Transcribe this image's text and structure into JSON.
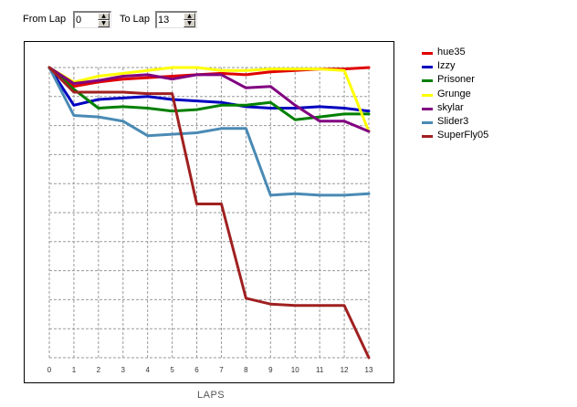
{
  "controls": {
    "from_label": "From Lap",
    "from_value": "0",
    "to_label": "To Lap",
    "to_value": "13"
  },
  "chart_data": {
    "type": "line",
    "xlabel": "LAPS",
    "ylabel": "",
    "title": "",
    "categories": [
      "0",
      "1",
      "2",
      "3",
      "4",
      "5",
      "6",
      "7",
      "8",
      "9",
      "10",
      "11",
      "12",
      "13"
    ],
    "x": [
      0,
      1,
      2,
      3,
      4,
      5,
      6,
      7,
      8,
      9,
      10,
      11,
      12,
      13
    ],
    "ylim": [
      0,
      10
    ],
    "y_tick_count": 10,
    "grid": true,
    "legend_position": "right",
    "series": [
      {
        "name": "hue35",
        "color": "#e00000",
        "values": [
          10.0,
          9.35,
          9.5,
          9.6,
          9.65,
          9.7,
          9.75,
          9.8,
          9.75,
          9.85,
          9.9,
          9.95,
          9.95,
          10.0
        ]
      },
      {
        "name": "Izzy",
        "color": "#0000c0",
        "values": [
          10.0,
          8.7,
          8.9,
          8.95,
          9.0,
          8.9,
          8.85,
          8.8,
          8.65,
          8.6,
          8.6,
          8.65,
          8.6,
          8.5
        ]
      },
      {
        "name": "Prisoner",
        "color": "#008000",
        "values": [
          10.0,
          9.25,
          8.6,
          8.65,
          8.6,
          8.5,
          8.55,
          8.7,
          8.7,
          8.8,
          8.2,
          8.3,
          8.4,
          8.4
        ]
      },
      {
        "name": "Grunge",
        "color": "#ffff00",
        "values": [
          10.0,
          9.5,
          9.7,
          9.8,
          9.9,
          10.0,
          10.0,
          9.9,
          9.9,
          9.95,
          9.95,
          9.95,
          9.9,
          7.8
        ]
      },
      {
        "name": "skylar",
        "color": "#800080",
        "values": [
          10.0,
          9.45,
          9.55,
          9.7,
          9.75,
          9.6,
          9.75,
          9.75,
          9.3,
          9.35,
          8.7,
          8.15,
          8.15,
          7.8
        ]
      },
      {
        "name": "Slider3",
        "color": "#4a8ab4",
        "values": [
          10.0,
          8.35,
          8.3,
          8.15,
          7.65,
          7.7,
          7.75,
          7.9,
          7.9,
          5.6,
          5.65,
          5.6,
          5.6,
          5.65
        ]
      },
      {
        "name": "SuperFly05",
        "color": "#a02020",
        "values": [
          10.0,
          9.15,
          9.15,
          9.15,
          9.1,
          9.1,
          5.3,
          5.3,
          2.05,
          1.85,
          1.8,
          1.8,
          1.8,
          0.0
        ]
      }
    ]
  }
}
